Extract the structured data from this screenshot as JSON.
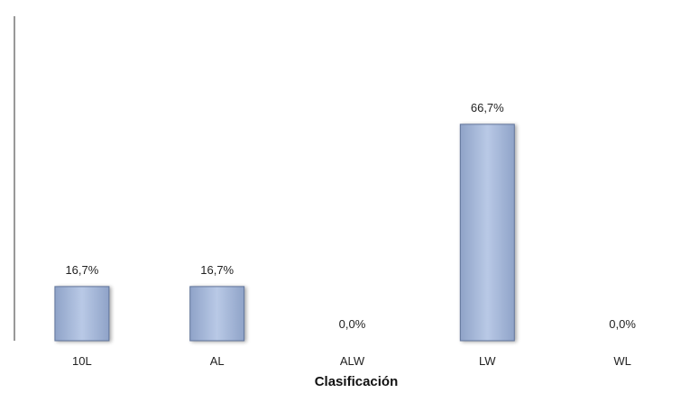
{
  "chart_data": {
    "type": "bar",
    "categories": [
      "10L",
      "AL",
      "ALW",
      "LW",
      "WL"
    ],
    "values": [
      16.7,
      16.7,
      0.0,
      66.7,
      0.0
    ],
    "data_labels": [
      "16,7%",
      "16,7%",
      "0,0%",
      "66,7%",
      "0,0%"
    ],
    "title": "",
    "xlabel": "Clasificación",
    "ylabel": "",
    "ylim": [
      0,
      100
    ],
    "grid": false,
    "legend": "none",
    "colors": {
      "bar_fill_top": "#b9c9e6",
      "bar_fill_bottom": "#8fa3c8",
      "bar_edge": "#5f7399",
      "axis": "#111111",
      "background": "#ffffff"
    }
  }
}
